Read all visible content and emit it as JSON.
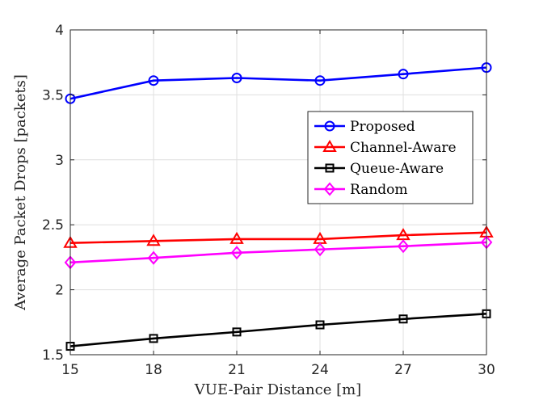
{
  "chart_data": {
    "type": "line",
    "title": "",
    "xlabel": "VUE-Pair Distance [m]",
    "ylabel": "Average Packet Drops [packets]",
    "x": [
      15,
      18,
      21,
      24,
      27,
      30
    ],
    "xlim": [
      15,
      30
    ],
    "ylim": [
      1.5,
      4
    ],
    "xticks": [
      15,
      18,
      21,
      24,
      27,
      30
    ],
    "xtick_labels": [
      "15",
      "18",
      "21",
      "24",
      "27",
      "30"
    ],
    "yticks": [
      1.5,
      2,
      2.5,
      3,
      3.5,
      4
    ],
    "ytick_labels": [
      "1.5",
      "2",
      "2.5",
      "3",
      "3.5",
      "4"
    ],
    "grid": true,
    "legend_position": "right",
    "series": [
      {
        "name": "Proposed",
        "color": "#0000ff",
        "marker": "circle",
        "values": [
          3.47,
          3.61,
          3.63,
          3.61,
          3.66,
          3.71
        ]
      },
      {
        "name": "Channel-Aware",
        "color": "#ff0000",
        "marker": "triangle",
        "values": [
          2.36,
          2.375,
          2.39,
          2.39,
          2.42,
          2.44
        ]
      },
      {
        "name": "Queue-Aware",
        "color": "#000000",
        "marker": "square",
        "values": [
          1.565,
          1.625,
          1.675,
          1.73,
          1.775,
          1.815
        ]
      },
      {
        "name": "Random",
        "color": "#ff00ff",
        "marker": "diamond",
        "values": [
          2.21,
          2.245,
          2.285,
          2.31,
          2.335,
          2.365
        ]
      }
    ]
  }
}
